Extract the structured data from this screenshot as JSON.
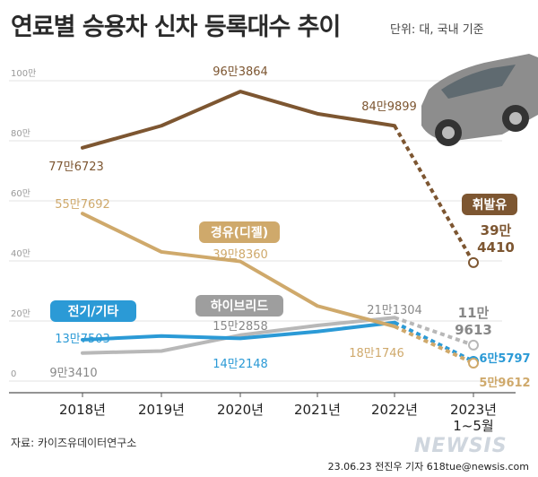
{
  "title": "연료별 승용차 신차 등록대수 추이",
  "unit": "단위: 대, 국내 기준",
  "source": "자료: 카이즈유데이터연구소",
  "credit": "23.06.23 전진우 기자 618tue@newsis.com",
  "watermark": "NEWSIS",
  "colors": {
    "gasoline": "#7d5631",
    "diesel": "#cfa96b",
    "hybrid": "#b8b8b8",
    "electric": "#2b9ad6",
    "hybrid_badge": "#9e9e9e",
    "electric_badge": "#2b9ad6",
    "gasoline_badge": "#7d5631"
  },
  "chart_data": {
    "type": "line",
    "title": "연료별 승용차 신차 등록대수 추이",
    "x": [
      "2018년",
      "2019년",
      "2020년",
      "2021년",
      "2022년",
      "2023년 1~5월"
    ],
    "y_ticks": [
      "100만",
      "80만",
      "60만",
      "40만",
      "20만",
      "0"
    ],
    "ylim": [
      0,
      1000000
    ],
    "grid": true,
    "series": [
      {
        "name": "휘발유",
        "key": "gasoline",
        "values": [
          776723,
          850000,
          963864,
          890000,
          849899,
          394410
        ],
        "labels": [
          "77만6723",
          "",
          "96만3864",
          "",
          "84만9899",
          "39만 4410"
        ]
      },
      {
        "name": "경유(디젤)",
        "key": "diesel",
        "values": [
          557692,
          430000,
          398360,
          250000,
          181746,
          59612
        ],
        "labels": [
          "55만7692",
          "",
          "39만8360",
          "",
          "18만1746",
          "5만9612"
        ]
      },
      {
        "name": "하이브리드",
        "key": "hybrid",
        "values": [
          93410,
          100000,
          152858,
          185000,
          211304,
          119613
        ],
        "labels": [
          "9만3410",
          "",
          "15만2858",
          "",
          "21만1304",
          "11만 9613"
        ]
      },
      {
        "name": "전기/기타",
        "key": "electric",
        "values": [
          137503,
          150000,
          142148,
          165000,
          195000,
          65797
        ],
        "labels": [
          "13만7503",
          "",
          "14만2148",
          "",
          "",
          "6만5797"
        ]
      }
    ]
  }
}
